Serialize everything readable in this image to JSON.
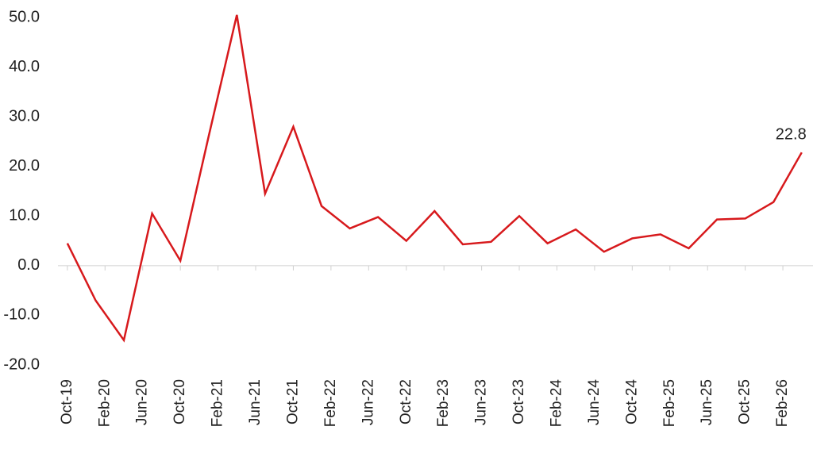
{
  "chart_data": {
    "type": "line",
    "x": [
      0,
      3,
      6,
      9,
      12,
      15,
      18,
      21,
      24,
      27,
      30,
      33,
      36,
      39,
      42,
      45,
      48,
      51,
      54,
      57,
      60,
      63,
      66,
      69,
      72,
      75,
      78
    ],
    "series": [
      {
        "color": "#d7191c",
        "values": [
          4.5,
          -7,
          -15,
          10.5,
          1,
          26,
          50.5,
          14.5,
          28,
          12,
          7.5,
          9.8,
          5,
          11,
          4.3,
          4.8,
          10,
          4.5,
          7.3,
          2.8,
          5.5,
          6.3,
          3.5,
          9.3,
          9.5,
          12.8,
          22.8
        ]
      }
    ],
    "labeled_points": [
      26
    ],
    "xlim": [
      -1,
      79.2
    ],
    "xticks": [
      {
        "value": 0,
        "label": "Oct-19"
      },
      {
        "value": 4,
        "label": "Feb-20"
      },
      {
        "value": 8,
        "label": "Jun-20"
      },
      {
        "value": 12,
        "label": "Oct-20"
      },
      {
        "value": 16,
        "label": "Feb-21"
      },
      {
        "value": 20,
        "label": "Jun-21"
      },
      {
        "value": 24,
        "label": "Oct-21"
      },
      {
        "value": 28,
        "label": "Feb-22"
      },
      {
        "value": 32,
        "label": "Jun-22"
      },
      {
        "value": 36,
        "label": "Oct-22"
      },
      {
        "value": 40,
        "label": "Feb-23"
      },
      {
        "value": 44,
        "label": "Jun-23"
      },
      {
        "value": 48,
        "label": "Oct-23"
      },
      {
        "value": 52,
        "label": "Feb-24"
      },
      {
        "value": 56,
        "label": "Jun-24"
      },
      {
        "value": 60,
        "label": "Oct-24"
      },
      {
        "value": 64,
        "label": "Feb-25"
      },
      {
        "value": 68,
        "label": "Jun-25"
      },
      {
        "value": 72,
        "label": "Oct-25"
      },
      {
        "value": 76,
        "label": "Feb-26"
      }
    ],
    "ylim": [
      -20,
      50
    ],
    "yticks": [
      {
        "value": 50,
        "label": "50.0"
      },
      {
        "value": 40,
        "label": "40.0"
      },
      {
        "value": 30,
        "label": "30.0"
      },
      {
        "value": 20,
        "label": "20.0"
      },
      {
        "value": 10,
        "label": "10.0"
      },
      {
        "value": 0,
        "label": "0.0"
      },
      {
        "value": -10,
        "label": "-10.0"
      },
      {
        "value": -20,
        "label": "-20.0"
      }
    ],
    "grid": false
  }
}
